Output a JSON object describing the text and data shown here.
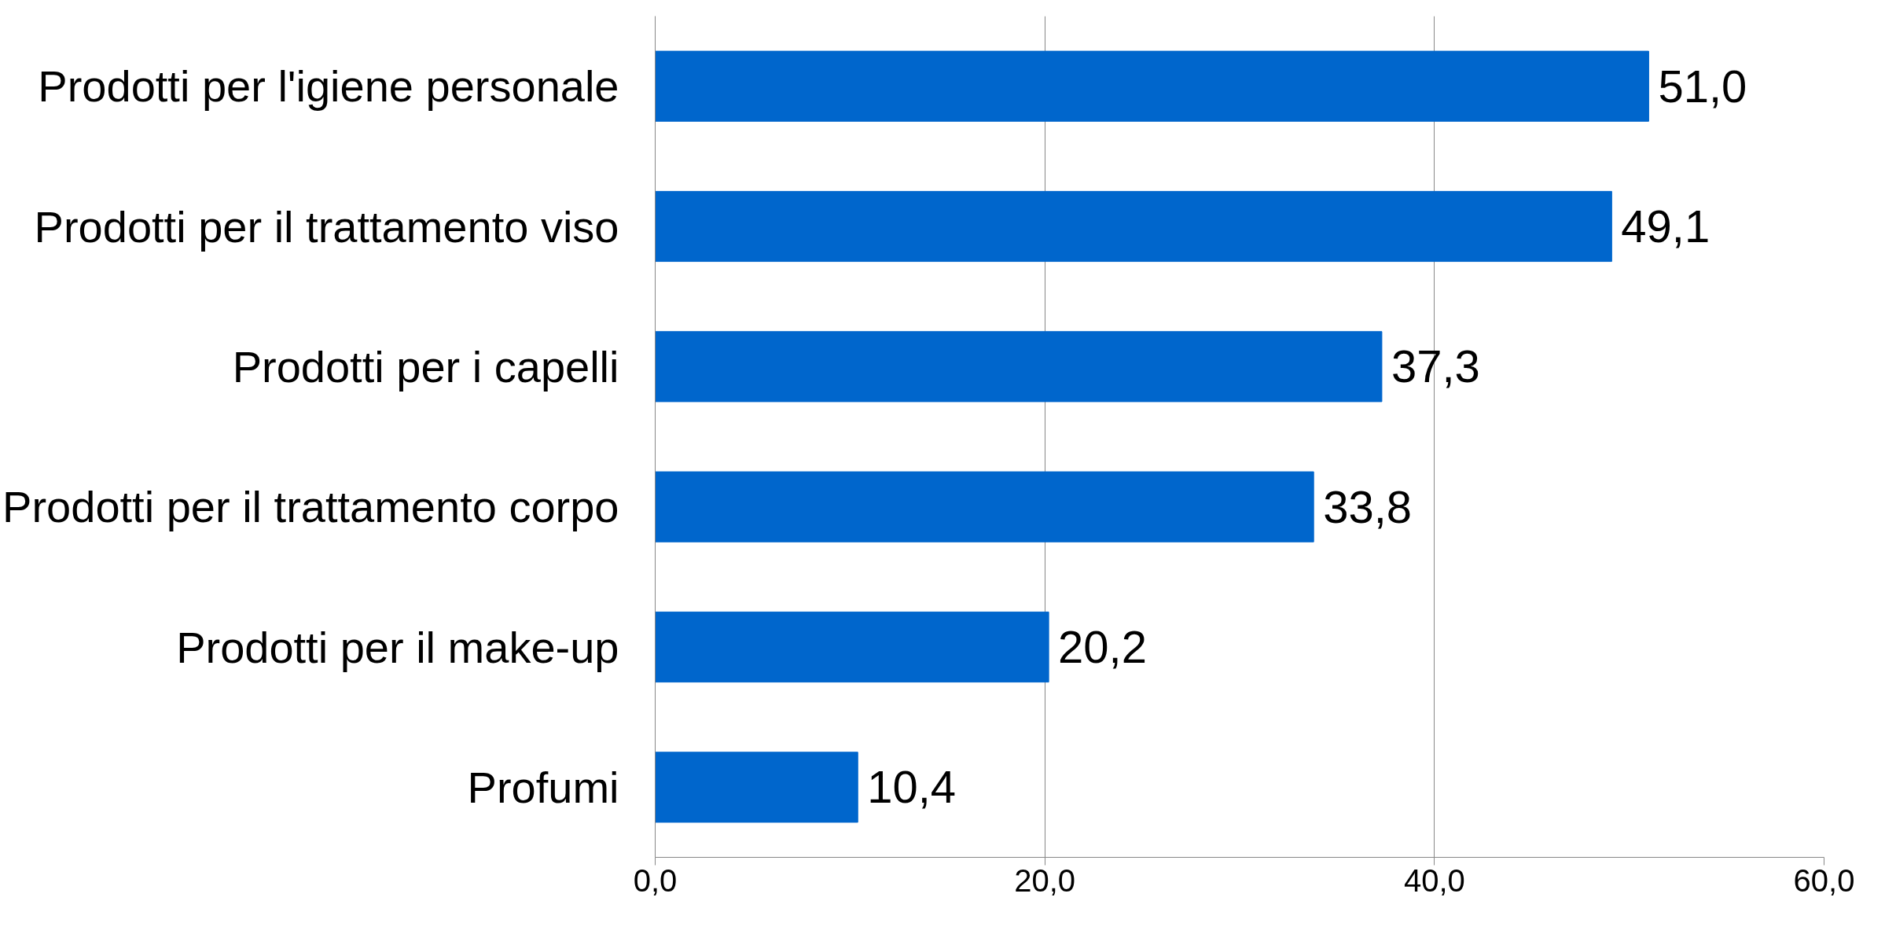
{
  "chart_data": {
    "type": "bar",
    "orientation": "horizontal",
    "categories": [
      "Prodotti per l'igiene personale",
      "Prodotti per il trattamento viso",
      "Prodotti per i capelli",
      "Prodotti per il trattamento corpo",
      "Prodotti per il make-up",
      "Profumi"
    ],
    "values": [
      51.0,
      49.1,
      37.3,
      33.8,
      20.2,
      10.4
    ],
    "value_labels": [
      "51,0",
      "49,1",
      "37,3",
      "33,8",
      "20,2",
      "10,4"
    ],
    "color": "#0066cc",
    "xlim": [
      0,
      60
    ],
    "xticks": [
      {
        "value": 0,
        "label": "0,0"
      },
      {
        "value": 20,
        "label": "20,0"
      },
      {
        "value": 40,
        "label": "40,0"
      },
      {
        "value": 60,
        "label": "60,0"
      }
    ],
    "grid": "x"
  }
}
